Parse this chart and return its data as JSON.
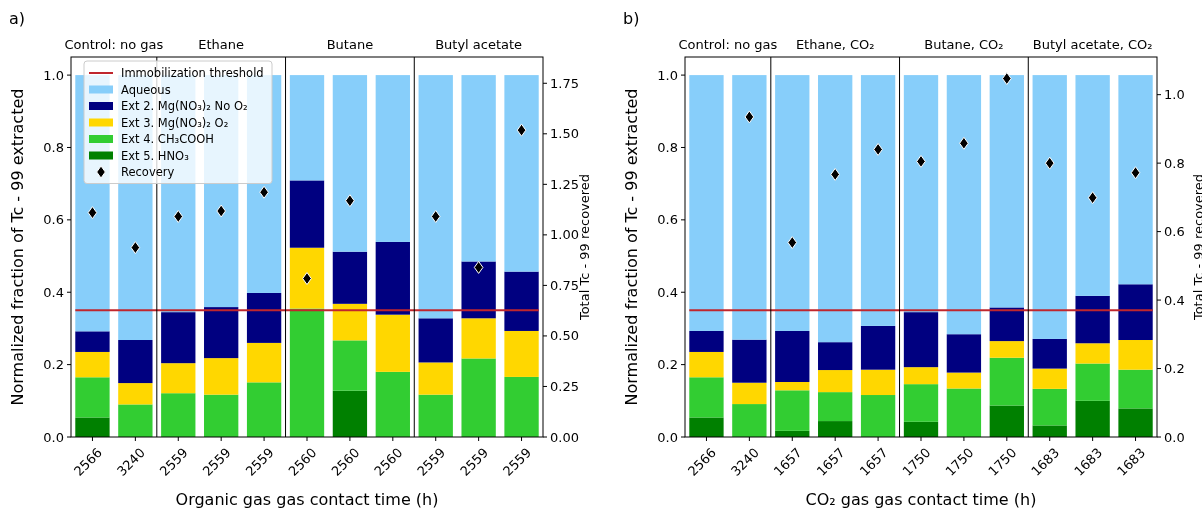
{
  "chart_data": [
    {
      "type": "bar",
      "stacked": true,
      "title": "a)",
      "annotations": [
        "Control: no gas",
        "Ethane",
        "Butane",
        "Butyl acetate"
      ],
      "xlabel": "Organic gas gas contact time (h)",
      "ylabel": "Normalized fraction of Tc - 99 extracted",
      "y2label": "Total Tc - 99 recovered",
      "categories": [
        "2566",
        "3240",
        "2559",
        "2559",
        "2559",
        "2560",
        "2560",
        "2560",
        "2559",
        "2559",
        "2559"
      ],
      "ylim": [
        0,
        1.05
      ],
      "yticks": [
        {
          "value": 0,
          "label": "0.0"
        },
        {
          "value": 0.2,
          "label": "0.2"
        },
        {
          "value": 0.4,
          "label": "0.4"
        },
        {
          "value": 0.6,
          "label": "0.6"
        },
        {
          "value": 0.8,
          "label": "0.8"
        },
        {
          "value": 1,
          "label": "1.0"
        }
      ],
      "y2lim": [
        0,
        1.88
      ],
      "y2ticks": [
        {
          "value": 0,
          "label": "0.00"
        },
        {
          "value": 0.25,
          "label": "0.25"
        },
        {
          "value": 0.5,
          "label": "0.50"
        },
        {
          "value": 0.75,
          "label": "0.75"
        },
        {
          "value": 1,
          "label": "1.00"
        },
        {
          "value": 1.25,
          "label": "1.25"
        },
        {
          "value": 1.5,
          "label": "1.50"
        },
        {
          "value": 1.75,
          "label": "1.75"
        }
      ],
      "legend": "top left",
      "grid": false,
      "ref_lines": [
        {
          "axis": "y",
          "value": 0.35,
          "label": "Immobilization threshold",
          "color": "#c0262d"
        }
      ],
      "series": [
        {
          "name": "Ext 5. HNO₃",
          "color": "#008000",
          "values": [
            0.054,
            0,
            0,
            0,
            0,
            0,
            0.128,
            0,
            0,
            0,
            0
          ]
        },
        {
          "name": "Ext 4. CH₃COOH",
          "color": "#32cd32",
          "values": [
            0.111,
            0.09,
            0.121,
            0.117,
            0.151,
            0.355,
            0.139,
            0.18,
            0.117,
            0.217,
            0.166
          ]
        },
        {
          "name": "Ext 3. Mg(NO₃)₂ O₂",
          "color": "#ffd700",
          "values": [
            0.07,
            0.059,
            0.083,
            0.101,
            0.109,
            0.168,
            0.101,
            0.158,
            0.089,
            0.111,
            0.127
          ]
        },
        {
          "name": "Ext 2. Mg(NO₃)₂ No O₂",
          "color": "#000080",
          "values": [
            0.057,
            0.119,
            0.141,
            0.141,
            0.138,
            0.186,
            0.144,
            0.201,
            0.122,
            0.157,
            0.164
          ]
        },
        {
          "name": "Aqueous",
          "color": "#87cefa",
          "values": [
            0.708,
            0.732,
            0.655,
            0.641,
            0.602,
            0.291,
            0.488,
            0.461,
            0.672,
            0.515,
            0.543
          ]
        },
        {
          "name": "Recovery",
          "type": "scatter",
          "axis": "y2",
          "marker": "diamond",
          "color": "#000000",
          "values": [
            1.11,
            0.937,
            1.091,
            1.118,
            1.211,
            0.784,
            1.169,
            null,
            1.091,
            0.839,
            1.518
          ]
        }
      ]
    },
    {
      "type": "bar",
      "stacked": true,
      "title": "b)",
      "annotations": [
        "Control: no gas",
        "Ethane, CO₂",
        "Butane, CO₂",
        "Butyl acetate, CO₂"
      ],
      "xlabel": "CO₂ gas gas contact time (h)",
      "ylabel": "Normalized fraction of Tc - 99 extracted",
      "y2label": "Total Tc - 99 recovered",
      "categories": [
        "2566",
        "3240",
        "1657",
        "1657",
        "1657",
        "1750",
        "1750",
        "1750",
        "1683",
        "1683",
        "1683"
      ],
      "ylim": [
        0,
        1.05
      ],
      "yticks": [
        {
          "value": 0,
          "label": "0.0"
        },
        {
          "value": 0.2,
          "label": "0.2"
        },
        {
          "value": 0.4,
          "label": "0.4"
        },
        {
          "value": 0.6,
          "label": "0.6"
        },
        {
          "value": 0.8,
          "label": "0.8"
        },
        {
          "value": 1,
          "label": "1.0"
        }
      ],
      "y2lim": [
        0,
        1.11
      ],
      "y2ticks": [
        {
          "value": 0,
          "label": "0.0"
        },
        {
          "value": 0.2,
          "label": "0.2"
        },
        {
          "value": 0.4,
          "label": "0.4"
        },
        {
          "value": 0.6,
          "label": "0.6"
        },
        {
          "value": 0.8,
          "label": "0.8"
        },
        {
          "value": 1,
          "label": "1.0"
        }
      ],
      "grid": false,
      "ref_lines": [
        {
          "axis": "y",
          "value": 0.35,
          "color": "#c0262d"
        }
      ],
      "series": [
        {
          "color": "#008000",
          "values": [
            0.054,
            0,
            0.017,
            0.044,
            0,
            0.042,
            0,
            0.087,
            0.032,
            0.1,
            0.079
          ]
        },
        {
          "color": "#32cd32",
          "values": [
            0.111,
            0.091,
            0.112,
            0.08,
            0.116,
            0.104,
            0.134,
            0.132,
            0.101,
            0.103,
            0.107
          ]
        },
        {
          "color": "#ffd700",
          "values": [
            0.07,
            0.059,
            0.023,
            0.061,
            0.07,
            0.047,
            0.044,
            0.046,
            0.056,
            0.056,
            0.082
          ]
        },
        {
          "color": "#000080",
          "values": [
            0.058,
            0.119,
            0.141,
            0.077,
            0.121,
            0.152,
            0.106,
            0.093,
            0.082,
            0.131,
            0.154
          ]
        },
        {
          "color": "#87cefa",
          "values": [
            0.707,
            0.731,
            0.707,
            0.738,
            0.693,
            0.655,
            0.716,
            0.642,
            0.729,
            0.61,
            0.578
          ]
        },
        {
          "type": "scatter",
          "axis": "y2",
          "marker": "diamond",
          "color": "#000000",
          "values": [
            null,
            0.935,
            0.568,
            0.767,
            0.84,
            0.805,
            0.858,
            1.047,
            0.8,
            0.699,
            0.772
          ]
        }
      ]
    }
  ]
}
